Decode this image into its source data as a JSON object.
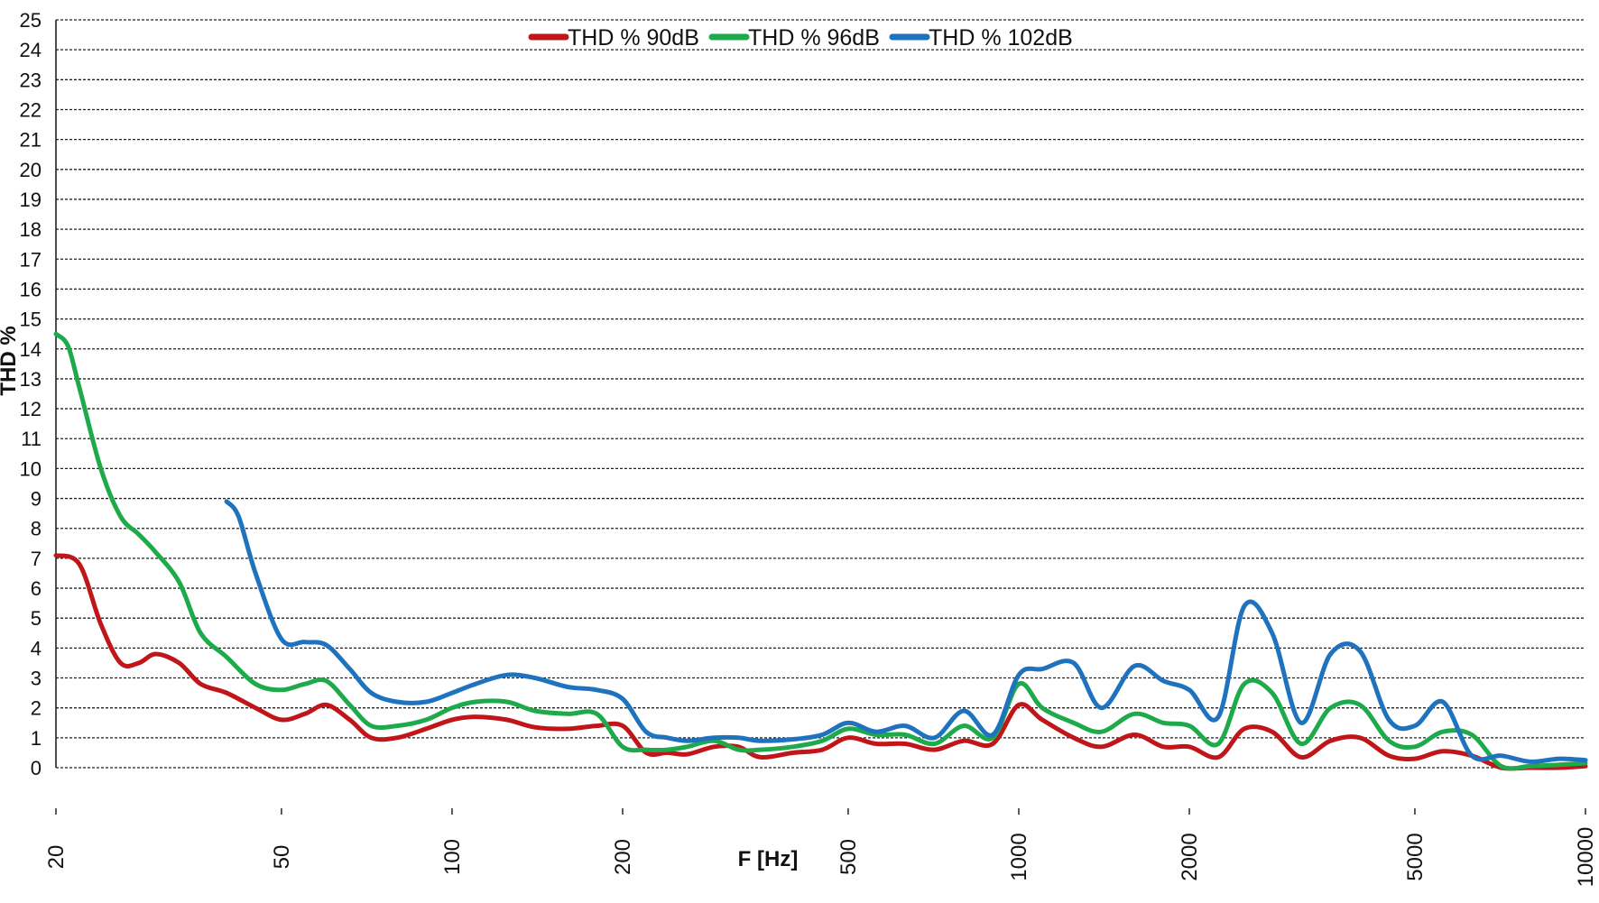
{
  "chart_data": {
    "type": "line",
    "title": "",
    "xlabel": "F [Hz]",
    "ylabel": "THD %",
    "x_scale": "log",
    "xlim": [
      20,
      10000
    ],
    "ylim": [
      0,
      25
    ],
    "grid": true,
    "legend_position": "top-center",
    "x_ticks": [
      "20",
      "50",
      "100",
      "200",
      "500",
      "1000",
      "2000",
      "5000",
      "10000"
    ],
    "y_ticks": [
      "0",
      "1",
      "2",
      "3",
      "4",
      "5",
      "6",
      "7",
      "8",
      "9",
      "10",
      "11",
      "12",
      "13",
      "14",
      "15",
      "16",
      "17",
      "18",
      "19",
      "20",
      "21",
      "22",
      "23",
      "24",
      "25"
    ],
    "series": [
      {
        "name": "THD % 90dB",
        "color": "#c0161a",
        "x": [
          20,
          22,
          24,
          26,
          28,
          30,
          33,
          36,
          40,
          45,
          50,
          55,
          60,
          66,
          72,
          80,
          90,
          100,
          110,
          125,
          140,
          160,
          180,
          200,
          220,
          240,
          260,
          290,
          320,
          350,
          400,
          450,
          500,
          560,
          630,
          710,
          800,
          900,
          1000,
          1100,
          1250,
          1400,
          1600,
          1800,
          2000,
          2250,
          2500,
          2800,
          3150,
          3550,
          4000,
          4500,
          5000,
          5600,
          6300,
          7100,
          8000,
          9000,
          10000
        ],
        "y": [
          7.1,
          6.8,
          4.8,
          3.5,
          3.5,
          3.8,
          3.5,
          2.8,
          2.5,
          2.0,
          1.6,
          1.8,
          2.1,
          1.6,
          1.0,
          1.0,
          1.3,
          1.6,
          1.7,
          1.6,
          1.35,
          1.3,
          1.4,
          1.4,
          0.5,
          0.5,
          0.45,
          0.7,
          0.7,
          0.35,
          0.5,
          0.6,
          1.0,
          0.8,
          0.8,
          0.6,
          0.9,
          0.8,
          2.1,
          1.6,
          1.0,
          0.7,
          1.1,
          0.7,
          0.7,
          0.35,
          1.3,
          1.2,
          0.35,
          0.9,
          1.0,
          0.4,
          0.3,
          0.55,
          0.4,
          0.0,
          0.0,
          0.0,
          0.05
        ]
      },
      {
        "name": "THD % 96dB",
        "color": "#1eaa4a",
        "x": [
          20,
          21,
          22,
          24,
          26,
          28,
          30,
          33,
          36,
          40,
          45,
          50,
          55,
          60,
          66,
          72,
          80,
          90,
          100,
          110,
          125,
          140,
          160,
          180,
          200,
          220,
          240,
          260,
          290,
          320,
          350,
          400,
          450,
          500,
          560,
          630,
          710,
          800,
          900,
          1000,
          1100,
          1250,
          1400,
          1600,
          1800,
          2000,
          2250,
          2500,
          2800,
          3150,
          3550,
          4000,
          4500,
          5000,
          5600,
          6300,
          7100,
          8000,
          9000,
          10000
        ],
        "y": [
          14.5,
          14.1,
          12.7,
          10.0,
          8.4,
          7.8,
          7.2,
          6.2,
          4.5,
          3.7,
          2.8,
          2.6,
          2.8,
          2.9,
          2.1,
          1.4,
          1.4,
          1.6,
          2.0,
          2.2,
          2.2,
          1.9,
          1.8,
          1.8,
          0.7,
          0.6,
          0.6,
          0.7,
          0.9,
          0.6,
          0.6,
          0.7,
          0.9,
          1.3,
          1.1,
          1.1,
          0.8,
          1.4,
          1.0,
          2.8,
          2.0,
          1.5,
          1.2,
          1.8,
          1.5,
          1.4,
          0.8,
          2.8,
          2.5,
          0.8,
          2.0,
          2.1,
          0.9,
          0.7,
          1.2,
          1.1,
          0.05,
          0.05,
          0.1,
          0.15
        ]
      },
      {
        "name": "THD % 102dB",
        "color": "#1f72bd",
        "x": [
          40,
          42,
          45,
          50,
          55,
          60,
          66,
          72,
          80,
          90,
          100,
          110,
          125,
          140,
          160,
          180,
          200,
          220,
          240,
          260,
          290,
          320,
          350,
          400,
          450,
          500,
          560,
          630,
          710,
          800,
          900,
          1000,
          1100,
          1250,
          1400,
          1600,
          1800,
          2000,
          2250,
          2500,
          2800,
          3150,
          3550,
          4000,
          4500,
          5000,
          5600,
          6300,
          7100,
          8000,
          9000,
          10000
        ],
        "y": [
          8.9,
          8.4,
          6.5,
          4.3,
          4.2,
          4.1,
          3.3,
          2.5,
          2.2,
          2.2,
          2.5,
          2.8,
          3.1,
          3.0,
          2.7,
          2.6,
          2.3,
          1.2,
          1.0,
          0.9,
          1.0,
          1.0,
          0.9,
          0.95,
          1.1,
          1.5,
          1.2,
          1.4,
          1.0,
          1.9,
          1.1,
          3.1,
          3.3,
          3.5,
          2.0,
          3.4,
          2.9,
          2.6,
          1.7,
          5.4,
          4.5,
          1.5,
          3.8,
          3.9,
          1.6,
          1.4,
          2.2,
          0.4,
          0.4,
          0.2,
          0.3,
          0.25
        ]
      }
    ]
  }
}
